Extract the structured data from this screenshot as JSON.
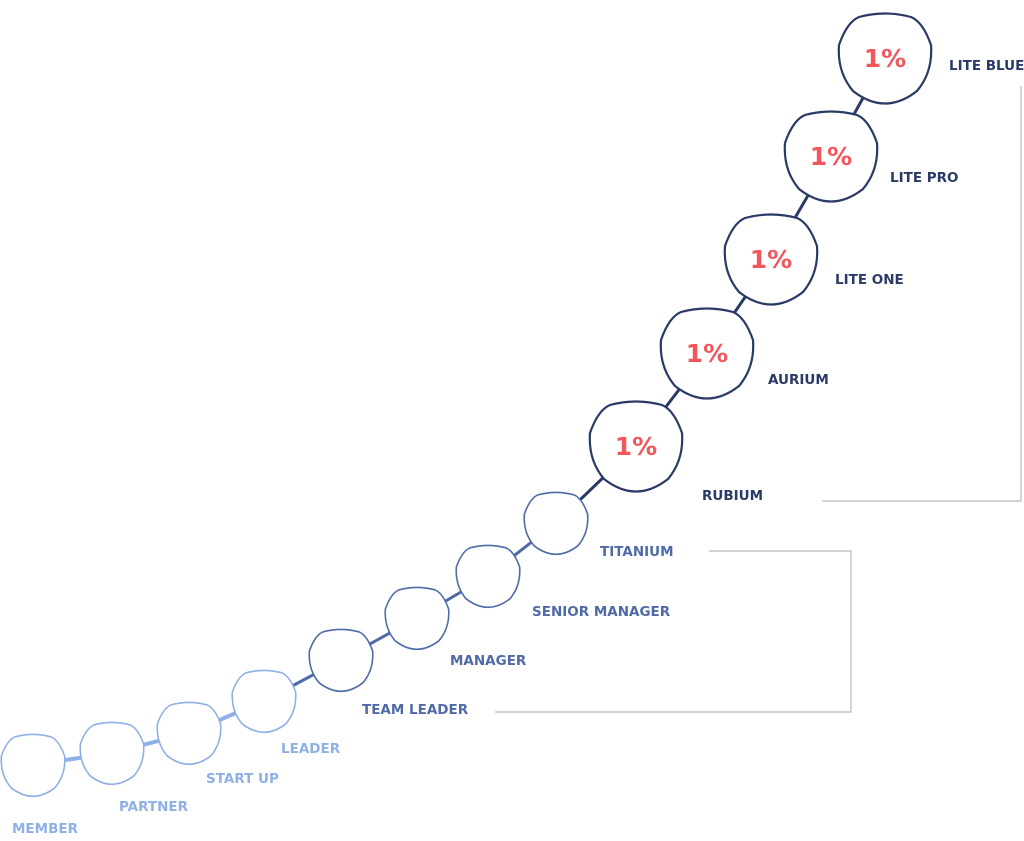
{
  "levels": [
    {
      "name": "MEMBER",
      "bonus": null
    },
    {
      "name": "PARTNER",
      "bonus": null
    },
    {
      "name": "START UP",
      "bonus": null
    },
    {
      "name": "LEADER",
      "bonus": null
    },
    {
      "name": "TEAM LEADER",
      "bonus": null
    },
    {
      "name": "MANAGER",
      "bonus": null
    },
    {
      "name": "SENIOR MANAGER",
      "bonus": null
    },
    {
      "name": "TITANIUM",
      "bonus": null
    },
    {
      "name": "RUBIUM",
      "bonus": "1%"
    },
    {
      "name": "AURIUM",
      "bonus": "1%"
    },
    {
      "name": "LITE ONE",
      "bonus": "1%"
    },
    {
      "name": "LITE PRO",
      "bonus": "1%"
    },
    {
      "name": "LITE BLUE",
      "bonus": "1%"
    }
  ],
  "colors": {
    "light": "#8fb0e6",
    "mid": "#4f6aa6",
    "dark": "#2a3a66",
    "bonus": "#f0575c",
    "bracket": "#b8b8b8"
  }
}
